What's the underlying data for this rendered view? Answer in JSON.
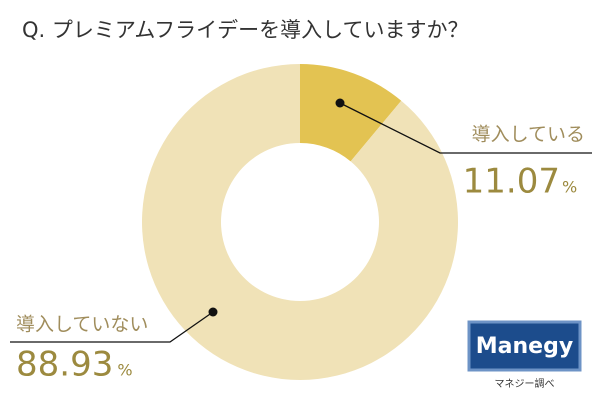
{
  "chart_data": {
    "type": "donut",
    "title": "Q. プレミアムフライデーを導入していますか？",
    "categories": [
      "導入している",
      "導入していない"
    ],
    "values": [
      11.07,
      88.93
    ],
    "unit": "%",
    "colors": [
      "#e3c352",
      "#f0e2b7"
    ]
  },
  "logo": "Manegy",
  "source": "マネジー調べ"
}
